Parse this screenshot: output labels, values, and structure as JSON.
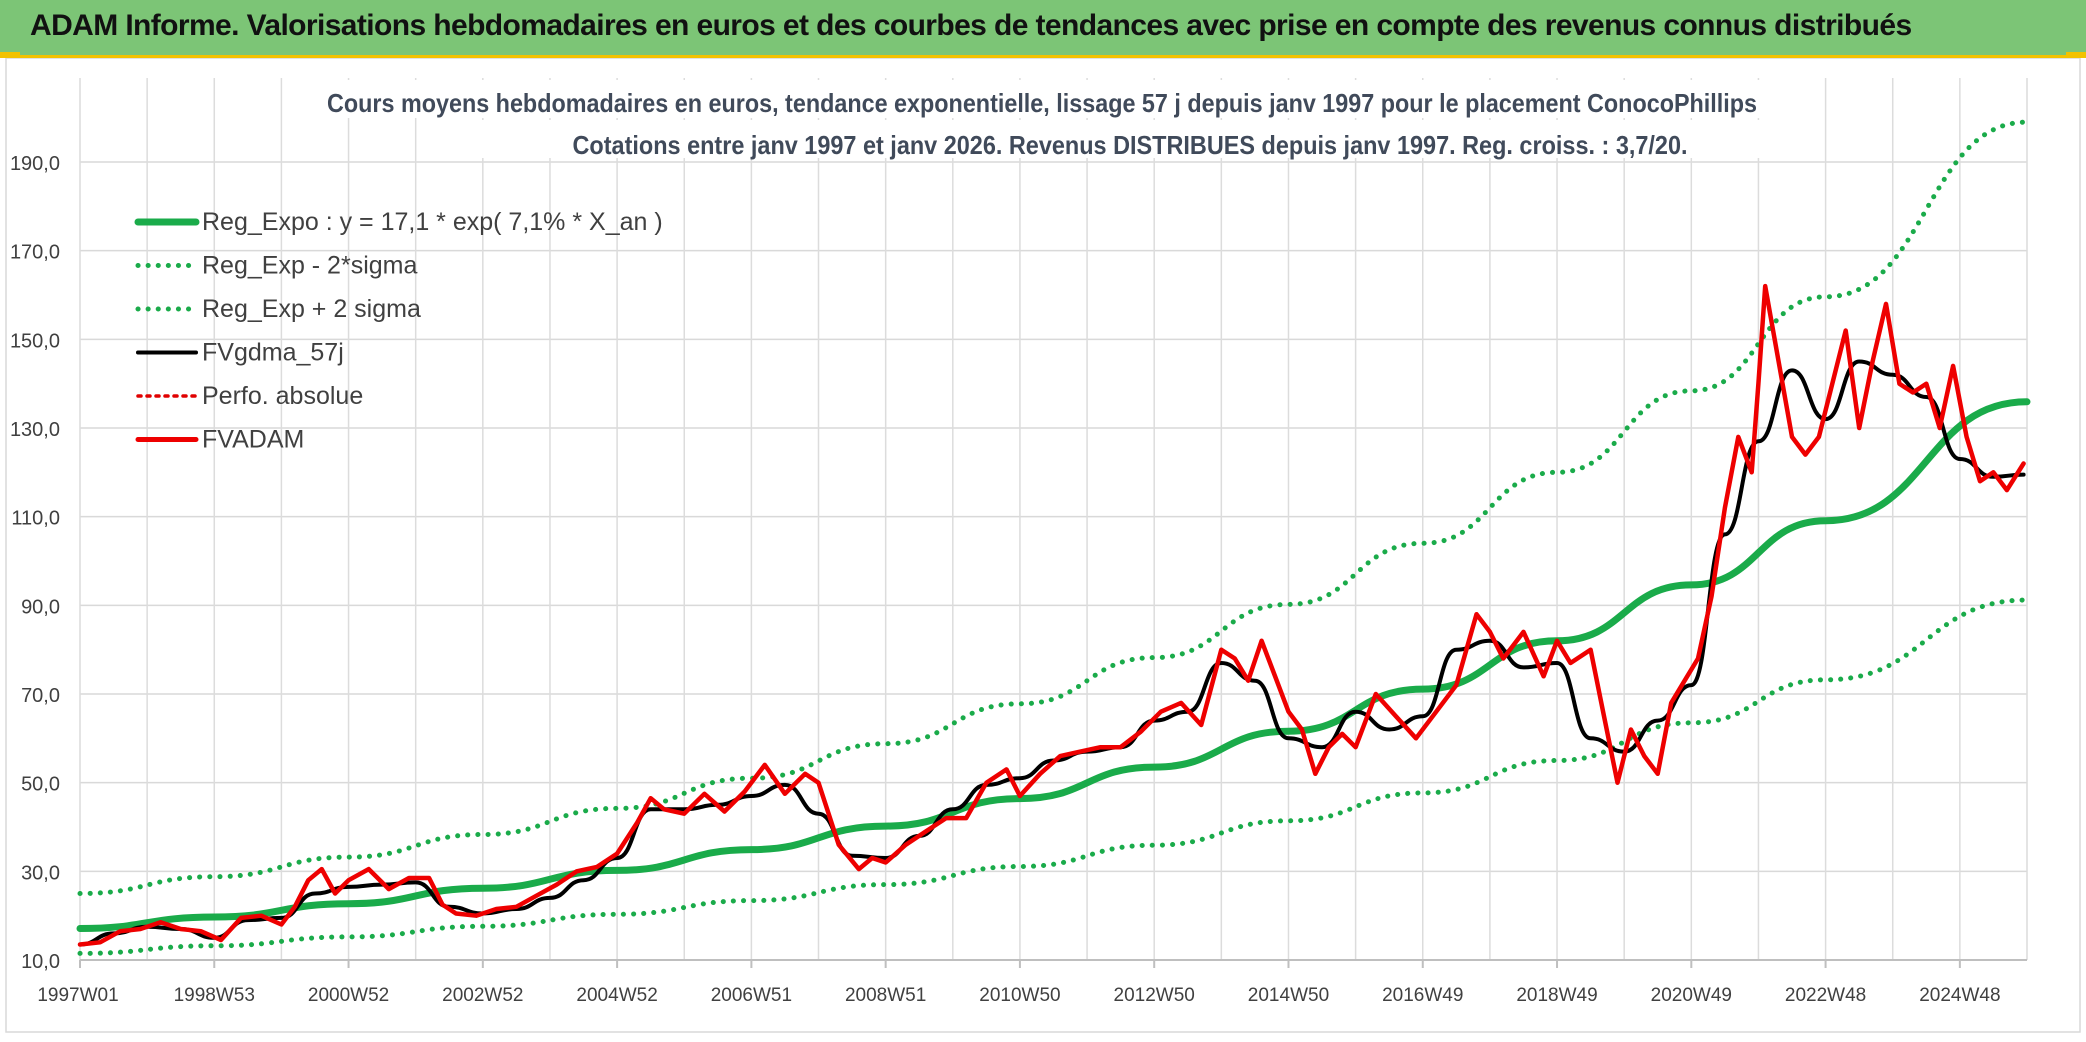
{
  "banner": {
    "title": "ADAM Informe. Valorisations hebdomadaires en euros et des courbes de tendances avec prise en compte des revenus connus distribués"
  },
  "chart_data": {
    "type": "line",
    "title": "Cours moyens hebdomadaires en euros, tendance exponentielle, lissage 57 j depuis janv 1997 pour le placement ConocoPhillips",
    "subtitle": "Cotations entre janv 1997 et janv 2026. Revenus DISTRIBUES depuis janv 1997. Reg. croiss. : 3,7/20.",
    "xlabel": "",
    "ylabel": "",
    "x_tick_labels": [
      "1997W01",
      "1998W53",
      "2000W52",
      "2002W52",
      "2004W52",
      "2006W51",
      "2008W51",
      "2010W50",
      "2012W50",
      "2014W50",
      "2016W49",
      "2018W49",
      "2020W49",
      "2022W48",
      "2024W48"
    ],
    "y_tick_labels": [
      "10,0",
      "30,0",
      "50,0",
      "70,0",
      "90,0",
      "110,0",
      "130,0",
      "150,0",
      "170,0",
      "190,0"
    ],
    "xlim": [
      1997.0,
      2026.0
    ],
    "ylim": [
      10,
      200
    ],
    "grid": true,
    "legend_position": "top-left",
    "series": [
      {
        "name": "Reg_Expo : y = 17,1 * exp( 7,1% *  X_an )",
        "color": "#1aab4a",
        "style": "solid",
        "width": 7,
        "x": [
          1997,
          1999,
          2001,
          2003,
          2005,
          2007,
          2009,
          2011,
          2013,
          2015,
          2017,
          2019,
          2021,
          2023,
          2026
        ],
        "values": [
          17.1,
          19.7,
          22.7,
          26.2,
          30.2,
          34.9,
          40.2,
          46.4,
          53.5,
          61.6,
          71.1,
          82.0,
          94.6,
          109.1,
          135.9
        ]
      },
      {
        "name": "Reg_Exp - 2*sigma",
        "color": "#1aab4a",
        "style": "dotted",
        "width": 5,
        "x": [
          1997,
          1999,
          2001,
          2003,
          2005,
          2007,
          2009,
          2011,
          2013,
          2015,
          2017,
          2019,
          2021,
          2023,
          2026
        ],
        "values": [
          11.5,
          13.2,
          15.2,
          17.6,
          20.3,
          23.4,
          27.0,
          31.1,
          35.9,
          41.4,
          47.7,
          55.0,
          63.5,
          73.2,
          91.2
        ]
      },
      {
        "name": "Reg_Exp + 2 sigma",
        "color": "#1aab4a",
        "style": "dotted",
        "width": 5,
        "x": [
          1997,
          1999,
          2001,
          2003,
          2005,
          2007,
          2009,
          2011,
          2013,
          2015,
          2017,
          2019,
          2021,
          2023,
          2026
        ],
        "values": [
          25.0,
          28.8,
          33.2,
          38.3,
          44.2,
          51.0,
          58.8,
          67.8,
          78.2,
          90.2,
          104.0,
          120.0,
          138.4,
          159.6,
          199.0
        ]
      },
      {
        "name": "FVgdma_57j",
        "color": "#000000",
        "style": "solid",
        "width": 4,
        "x": [
          1997.0,
          1997.5,
          1998.0,
          1998.5,
          1999.0,
          1999.5,
          2000.0,
          2000.5,
          2001.0,
          2001.5,
          2002.0,
          2002.5,
          2003.0,
          2003.5,
          2004.0,
          2004.5,
          2005.0,
          2005.5,
          2006.0,
          2006.5,
          2007.0,
          2007.5,
          2008.0,
          2008.5,
          2009.0,
          2009.5,
          2010.0,
          2010.5,
          2011.0,
          2011.5,
          2012.0,
          2012.5,
          2013.0,
          2013.5,
          2014.0,
          2014.5,
          2015.0,
          2015.5,
          2016.0,
          2016.5,
          2017.0,
          2017.5,
          2018.0,
          2018.5,
          2019.0,
          2019.5,
          2020.0,
          2020.5,
          2021.0,
          2021.5,
          2022.0,
          2022.5,
          2023.0,
          2023.5,
          2024.0,
          2024.5,
          2025.0,
          2025.5,
          2025.95
        ],
        "values": [
          13.5,
          16.0,
          17.5,
          17.0,
          15.0,
          19.0,
          19.5,
          25.0,
          26.5,
          27.0,
          27.5,
          22.0,
          20.5,
          21.5,
          24.0,
          28.0,
          33.0,
          44.0,
          44.0,
          45.0,
          47.0,
          49.5,
          43.0,
          33.5,
          33.0,
          38.0,
          44.0,
          49.5,
          51.0,
          55.0,
          57.0,
          58.0,
          64.0,
          66.0,
          77.0,
          73.0,
          60.0,
          58.0,
          66.0,
          62.0,
          65.0,
          80.0,
          82.0,
          76.0,
          77.0,
          60.0,
          57.0,
          64.0,
          72.0,
          106.0,
          127.0,
          143.0,
          132.0,
          145.0,
          142.0,
          137.0,
          123.0,
          119.0,
          119.5
        ]
      },
      {
        "name": "Perfo. absolue",
        "color": "#e00000",
        "style": "dotted",
        "width": 3,
        "x": [
          1997.0,
          1997.5,
          1998.0,
          1998.5,
          1999.0,
          1999.5,
          2000.0,
          2000.5,
          2001.0,
          2001.5,
          2002.0,
          2002.5,
          2003.0,
          2003.5,
          2004.0,
          2004.5,
          2005.0,
          2005.5,
          2006.0,
          2006.5,
          2007.0,
          2007.5,
          2008.0,
          2008.5,
          2009.0,
          2009.5,
          2010.0,
          2010.5,
          2011.0,
          2011.5,
          2012.0,
          2012.5,
          2013.0,
          2013.5,
          2014.0,
          2014.5,
          2015.0,
          2015.5,
          2016.0,
          2016.5,
          2017.0,
          2017.5,
          2018.0,
          2018.5,
          2019.0,
          2019.5,
          2020.0,
          2020.5,
          2021.0,
          2021.5,
          2022.0,
          2022.5,
          2023.0,
          2023.5,
          2024.0,
          2024.5,
          2025.0,
          2025.5,
          2025.95
        ],
        "values": [
          13.5,
          16.0,
          17.5,
          17.0,
          15.0,
          19.0,
          19.5,
          25.0,
          26.5,
          27.0,
          27.5,
          22.0,
          20.5,
          21.5,
          24.0,
          28.0,
          33.0,
          44.0,
          44.0,
          45.0,
          47.0,
          49.5,
          43.0,
          33.5,
          33.0,
          38.0,
          44.0,
          49.5,
          51.0,
          55.0,
          57.0,
          58.0,
          64.0,
          66.0,
          77.0,
          73.0,
          60.0,
          58.0,
          66.0,
          62.0,
          65.0,
          80.0,
          82.0,
          76.0,
          77.0,
          60.0,
          57.0,
          64.0,
          72.0,
          106.0,
          127.0,
          143.0,
          132.0,
          145.0,
          142.0,
          137.0,
          123.0,
          119.0,
          119.5
        ]
      },
      {
        "name": "FVADAM",
        "color": "#ee0000",
        "style": "solid",
        "width": 5,
        "x": [
          1997.0,
          1997.3,
          1997.6,
          1997.9,
          1998.2,
          1998.5,
          1998.8,
          1999.1,
          1999.4,
          1999.7,
          2000.0,
          2000.2,
          2000.4,
          2000.6,
          2000.8,
          2001.0,
          2001.3,
          2001.6,
          2001.9,
          2002.2,
          2002.4,
          2002.6,
          2002.9,
          2003.2,
          2003.5,
          2003.8,
          2004.1,
          2004.4,
          2004.7,
          2005.0,
          2005.3,
          2005.5,
          2005.7,
          2006.0,
          2006.3,
          2006.6,
          2006.9,
          2007.2,
          2007.5,
          2007.8,
          2008.0,
          2008.3,
          2008.6,
          2008.8,
          2009.0,
          2009.3,
          2009.6,
          2009.9,
          2010.2,
          2010.5,
          2010.8,
          2011.0,
          2011.3,
          2011.6,
          2011.9,
          2012.2,
          2012.5,
          2012.8,
          2013.1,
          2013.4,
          2013.7,
          2014.0,
          2014.2,
          2014.4,
          2014.6,
          2014.8,
          2015.0,
          2015.2,
          2015.4,
          2015.6,
          2015.8,
          2016.0,
          2016.3,
          2016.6,
          2016.9,
          2017.2,
          2017.5,
          2017.8,
          2018.0,
          2018.2,
          2018.5,
          2018.8,
          2019.0,
          2019.2,
          2019.5,
          2019.7,
          2019.9,
          2020.1,
          2020.3,
          2020.5,
          2020.7,
          2020.9,
          2021.1,
          2021.3,
          2021.5,
          2021.7,
          2021.9,
          2022.0,
          2022.1,
          2022.3,
          2022.5,
          2022.7,
          2022.9,
          2023.1,
          2023.3,
          2023.5,
          2023.7,
          2023.9,
          2024.1,
          2024.3,
          2024.5,
          2024.7,
          2024.9,
          2025.1,
          2025.3,
          2025.5,
          2025.7,
          2025.95
        ],
        "values": [
          13.5,
          14.0,
          16.5,
          17.0,
          18.5,
          17.0,
          16.5,
          14.5,
          19.5,
          20.0,
          18.0,
          22.0,
          28.0,
          30.5,
          25.0,
          28.0,
          30.5,
          26.0,
          28.5,
          28.5,
          22.5,
          20.5,
          20.0,
          21.5,
          22.0,
          24.5,
          27.0,
          30.0,
          31.0,
          34.0,
          41.0,
          46.5,
          44.0,
          43.0,
          47.5,
          43.5,
          48.0,
          54.0,
          47.5,
          52.0,
          50.0,
          36.0,
          30.5,
          33.0,
          32.0,
          36.0,
          39.0,
          42.0,
          42.0,
          50.0,
          53.0,
          47.0,
          52.0,
          56.0,
          57.0,
          58.0,
          58.0,
          61.5,
          66.0,
          68.0,
          63.0,
          80.0,
          78.0,
          73.0,
          82.0,
          74.0,
          66.0,
          62.0,
          52.0,
          58.0,
          61.0,
          58.0,
          70.0,
          65.0,
          60.0,
          66.0,
          72.0,
          88.0,
          84.0,
          78.0,
          84.0,
          74.0,
          82.0,
          77.0,
          80.0,
          65.0,
          50.0,
          62.0,
          56.0,
          52.0,
          68.0,
          73.0,
          78.0,
          92.0,
          112.0,
          128.0,
          120.0,
          140.0,
          162.0,
          145.0,
          128.0,
          124.0,
          128.0,
          140.0,
          152.0,
          130.0,
          145.0,
          158.0,
          140.0,
          138.0,
          140.0,
          130.0,
          144.0,
          128.0,
          118.0,
          120.0,
          116.0,
          122.0
        ]
      }
    ]
  }
}
